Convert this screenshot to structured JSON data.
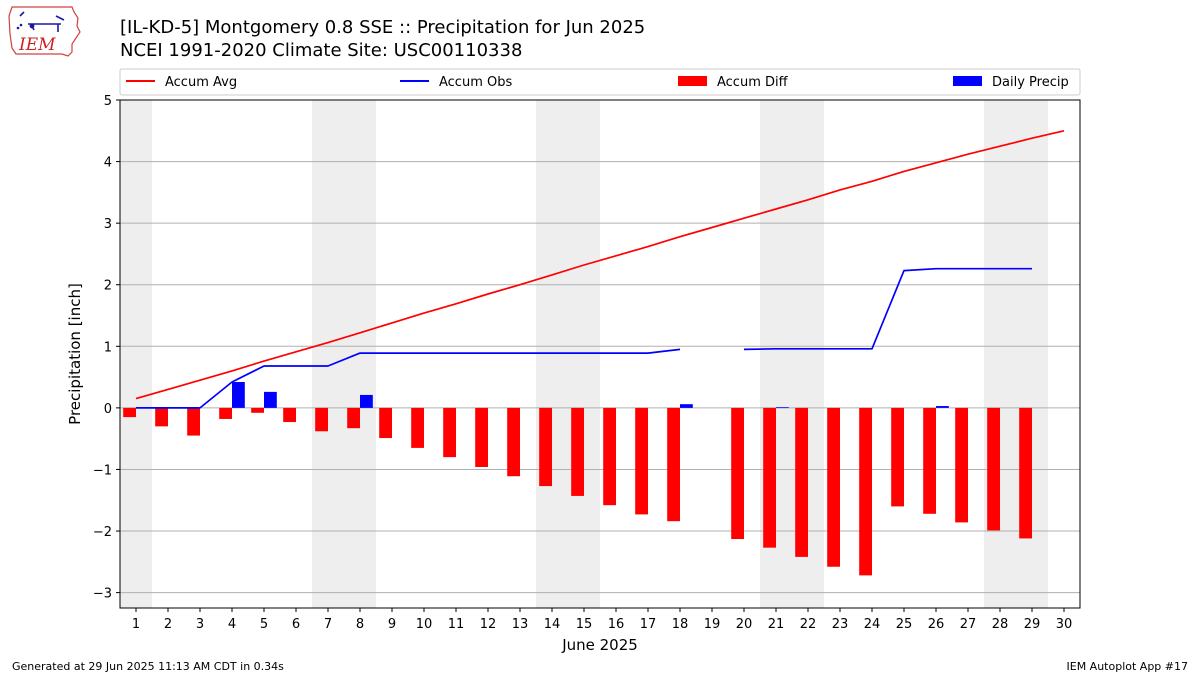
{
  "titles": {
    "line1": "[IL-KD-5] Montgomery 0.8 SSE :: Precipitation for Jun 2025",
    "line2": "NCEI 1991-2020 Climate Site: USC00110338"
  },
  "logo": {
    "text": "IEM",
    "icon": "iowa-state-map-logo"
  },
  "footer": {
    "left": "Generated at 29 Jun 2025 11:13 AM CDT in 0.34s",
    "right": "IEM Autoplot App #17"
  },
  "chart_data": {
    "type": "bar",
    "xlabel": "June 2025",
    "ylabel": "Precipitation [inch]",
    "xlim": [
      0.5,
      30.5
    ],
    "ylim": [
      -3.25,
      5
    ],
    "yticks": [
      -3,
      -2,
      -1,
      0,
      1,
      2,
      3,
      4,
      5
    ],
    "ytick_labels": [
      "−3",
      "−2",
      "−1",
      "0",
      "1",
      "2",
      "3",
      "4",
      "5"
    ],
    "xticks": [
      1,
      2,
      3,
      4,
      5,
      6,
      7,
      8,
      9,
      10,
      11,
      12,
      13,
      14,
      15,
      16,
      17,
      18,
      19,
      20,
      21,
      22,
      23,
      24,
      25,
      26,
      27,
      28,
      29,
      30
    ],
    "grid": "horizontal",
    "weekend_shading": [
      [
        0.5,
        1.5
      ],
      [
        6.5,
        8.5
      ],
      [
        13.5,
        15.5
      ],
      [
        20.5,
        22.5
      ],
      [
        27.5,
        29.5
      ]
    ],
    "legend_position": "top",
    "series": [
      {
        "name": "Accum Avg",
        "kind": "line",
        "color": "#ff0000",
        "x": [
          1,
          2,
          3,
          4,
          5,
          6,
          7,
          8,
          9,
          10,
          11,
          12,
          13,
          14,
          15,
          16,
          17,
          18,
          19,
          20,
          21,
          22,
          23,
          24,
          25,
          26,
          27,
          28,
          29,
          30
        ],
        "values": [
          0.15,
          0.3,
          0.45,
          0.6,
          0.76,
          0.91,
          1.06,
          1.22,
          1.38,
          1.54,
          1.69,
          1.85,
          2.0,
          2.16,
          2.32,
          2.47,
          2.62,
          2.78,
          2.93,
          3.08,
          3.23,
          3.38,
          3.54,
          3.68,
          3.84,
          3.98,
          4.12,
          4.25,
          4.38,
          4.5
        ]
      },
      {
        "name": "Accum Obs",
        "kind": "line",
        "color": "#0000ff",
        "x": [
          1,
          2,
          3,
          4,
          5,
          6,
          7,
          8,
          9,
          10,
          11,
          12,
          13,
          14,
          15,
          16,
          17,
          18,
          19,
          20,
          21,
          22,
          23,
          24,
          25,
          26,
          27,
          28,
          29
        ],
        "values": [
          0,
          0,
          0,
          0.42,
          0.68,
          0.68,
          0.68,
          0.89,
          0.89,
          0.89,
          0.89,
          0.89,
          0.89,
          0.89,
          0.89,
          0.89,
          0.89,
          0.95,
          null,
          0.95,
          0.96,
          0.96,
          0.96,
          0.96,
          2.23,
          2.26,
          2.26,
          2.26,
          2.26
        ]
      },
      {
        "name": "Accum Diff",
        "kind": "bar",
        "color": "#ff0000",
        "x": [
          1,
          2,
          3,
          4,
          5,
          6,
          7,
          8,
          9,
          10,
          11,
          12,
          13,
          14,
          15,
          16,
          17,
          18,
          20,
          21,
          22,
          23,
          24,
          25,
          26,
          27,
          28,
          29
        ],
        "values": [
          -0.15,
          -0.3,
          -0.45,
          -0.18,
          -0.08,
          -0.23,
          -0.38,
          -0.33,
          -0.49,
          -0.65,
          -0.8,
          -0.96,
          -1.11,
          -1.27,
          -1.43,
          -1.58,
          -1.73,
          -1.84,
          -2.13,
          -2.27,
          -2.42,
          -2.58,
          -2.72,
          -1.6,
          -1.72,
          -1.86,
          -1.99,
          -2.12
        ]
      },
      {
        "name": "Daily Precip",
        "kind": "bar",
        "color": "#0000ff",
        "x": [
          4,
          5,
          8,
          18,
          21,
          26
        ],
        "values": [
          0.42,
          0.26,
          0.21,
          0.06,
          0.01,
          0.03
        ]
      }
    ]
  }
}
